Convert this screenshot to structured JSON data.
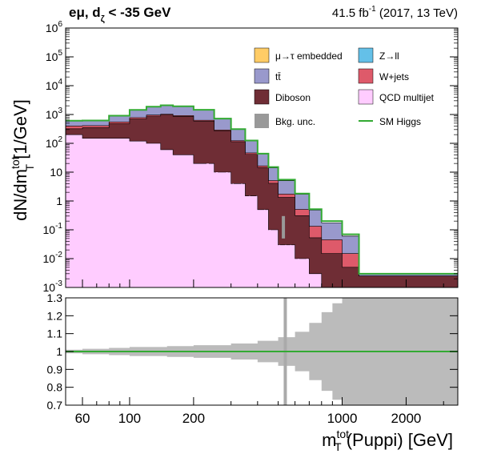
{
  "header": {
    "channel_prefix": "eμ, d",
    "channel_sub": "ζ",
    "channel_suffix": " < -35 GeV",
    "lumi_prefix": "41.5 fb",
    "lumi_exp": "-1",
    "lumi_suffix": " (2017, 13 TeV)"
  },
  "axes": {
    "ylabel_main": "dN/dm",
    "ylabel_sup": "tot",
    "ylabel_sub": "T",
    "ylabel_unit": " [1/GeV]",
    "xlabel_main": "m",
    "xlabel_sup": "tot",
    "xlabel_sub": "T",
    "xlabel_unit": " (Puppi) [GeV]"
  },
  "legend": [
    {
      "label": "μ→τ embedded",
      "color": "#ffcc66"
    },
    {
      "label": "Z→ll",
      "color": "#64c0e8"
    },
    {
      "label": "tt̄",
      "color": "#9999cc"
    },
    {
      "label": "W+jets",
      "color": "#de5a6a"
    },
    {
      "label": "Diboson",
      "color": "#6f2d35"
    },
    {
      "label": "QCD multijet",
      "color": "#ffccff"
    },
    {
      "label": "Bkg. unc.",
      "color": "#999999"
    },
    {
      "label": "SM Higgs",
      "color": "#33aa33"
    }
  ],
  "chart_data": [
    {
      "type": "area",
      "subtype": "stacked-histogram",
      "y_scale": "log",
      "x_scale": "log",
      "xlim": [
        50,
        3500
      ],
      "ylim": [
        0.001,
        1000000
      ],
      "y_ticks": [
        "10^-3",
        "10^-2",
        "10^-1",
        "1",
        "10",
        "10^2",
        "10^3",
        "10^4",
        "10^5",
        "10^6"
      ],
      "x": [
        50,
        60,
        80,
        100,
        120,
        140,
        160,
        200,
        250,
        300,
        350,
        400,
        450,
        500,
        600,
        700,
        800,
        1000,
        1200,
        3500
      ],
      "series": [
        {
          "name": "QCD multijet",
          "values": [
            200,
            150,
            150,
            120,
            100,
            60,
            40,
            20,
            10,
            4,
            1.5,
            0.5,
            0.1,
            0.03,
            0.01,
            0.003,
            0.001,
            0.001,
            0.001,
            0.001
          ]
        },
        {
          "name": "Diboson",
          "values": [
            120,
            200,
            330,
            580,
            780,
            900,
            820,
            570,
            260,
            110,
            40,
            14,
            4,
            1.3,
            0.3,
            0.05,
            0.014,
            0.004,
            0.0015,
            0.001
          ]
        },
        {
          "name": "W+jets",
          "values": [
            80,
            60,
            70,
            80,
            80,
            70,
            60,
            40,
            20,
            10,
            5,
            2,
            1,
            0.4,
            0.2,
            0.08,
            0.03,
            0.01,
            0,
            0
          ]
        },
        {
          "name": "tt̄",
          "values": [
            200,
            200,
            350,
            650,
            900,
            1050,
            1000,
            820,
            430,
            180,
            75,
            26,
            9,
            3.3,
            1.2,
            0.35,
            0.13,
            0.045,
            0.0005,
            0.0005
          ]
        },
        {
          "name": "Z→ll",
          "values": [
            5,
            4,
            4,
            4,
            4,
            3,
            3,
            2,
            1,
            0.5,
            0.2,
            0.1,
            0.05,
            0.02,
            0.01,
            0,
            0,
            0,
            0,
            0
          ]
        },
        {
          "name": "μ→τ embedded",
          "values": [
            5,
            5,
            6,
            6,
            6,
            5,
            5,
            3,
            2,
            1,
            0.4,
            0.2,
            0.1,
            0.05,
            0.02,
            0,
            0,
            0,
            0,
            0
          ]
        }
      ],
      "higgs": [
        610,
        620,
        910,
        1440,
        1870,
        2090,
        1930,
        1460,
        720,
        310,
        125,
        44,
        15,
        5.5,
        1.8,
        0.52,
        0.2,
        0.07,
        0.003,
        0.003
      ],
      "diboson_dips": [
        [
          230,
          236
        ],
        [
          255,
          260
        ],
        [
          285,
          289
        ],
        [
          305,
          309
        ],
        [
          335,
          339
        ],
        [
          365,
          369
        ],
        [
          395,
          399
        ],
        [
          430,
          434
        ],
        [
          455,
          460
        ],
        [
          505,
          510
        ],
        [
          540,
          545
        ],
        [
          570,
          575
        ],
        [
          620,
          625
        ],
        [
          680,
          690
        ]
      ]
    },
    {
      "type": "area",
      "subtype": "ratio-uncertainty-band",
      "ylim": [
        0.7,
        1.3
      ],
      "y_ticks": [
        "0.7",
        "0.8",
        "0.9",
        "1",
        "1.1",
        "1.2",
        "1.3"
      ],
      "x_ticks": [
        "60",
        "100",
        "200",
        "1000",
        "2000"
      ],
      "x": [
        50,
        60,
        80,
        100,
        150,
        200,
        300,
        400,
        500,
        600,
        700,
        800,
        900,
        1000,
        1200,
        3500
      ],
      "band_half_width": [
        0.01,
        0.015,
        0.02,
        0.025,
        0.03,
        0.035,
        0.045,
        0.06,
        0.08,
        0.11,
        0.16,
        0.22,
        0.27,
        0.3,
        0.3,
        0.3
      ],
      "spikes": [
        {
          "x": 540,
          "half_width": 0.3
        }
      ],
      "higgs_ratio": 1.0
    }
  ]
}
